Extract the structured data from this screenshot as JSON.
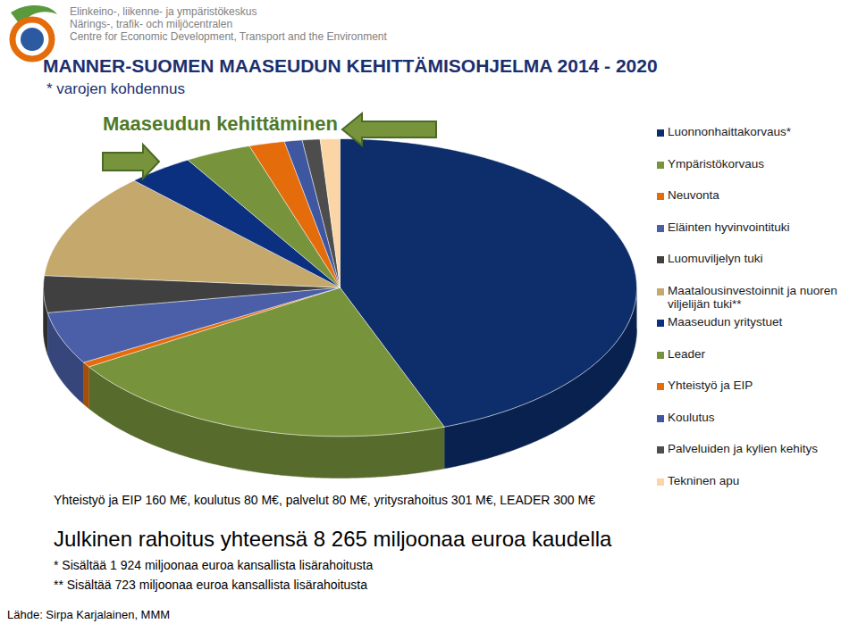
{
  "header": {
    "organization": [
      "Elinkeino-, liikenne- ja ympäristökeskus",
      "Närings-, trafik- och miljöcentralen",
      "Centre for Economic Development, Transport and the Environment"
    ]
  },
  "chart_data": {
    "type": "pie",
    "title": "MANNER-SUOMEN MAASEUDUN KEHITTÄMISOHJELMA 2014 - 2020",
    "subtitle": "* varojen kohdennus",
    "annotation": "Maaseudun kehittäminen",
    "categories": [
      "Luonnonhaittakorvaus*",
      "Ympäristökorvaus",
      "Neuvonta",
      "Eläinten hyvinvointituki",
      "Luomuviljelyn tuki",
      "Maatalousinvestoinnit ja nuoren viljelijän tuki**",
      "Maaseudun yritystuet",
      "Leader",
      "Yhteistyö ja EIP",
      "Koulutus",
      "Palveluiden ja kylien kehitys",
      "Tekninen apu"
    ],
    "values": [
      3660,
      1800,
      45,
      470,
      330,
      950,
      301,
      300,
      160,
      80,
      80,
      89
    ],
    "colors": [
      "#0d2d6b",
      "#77933c",
      "#e46c0a",
      "#4a5fa8",
      "#404040",
      "#c4a86c",
      "#0c3080",
      "#77933c",
      "#e46c0a",
      "#3f56a0",
      "#4d4d4d",
      "#fcd5a5"
    ],
    "legend": "right",
    "caption": "Yhteistyö ja EIP 160 M€, koulutus 80 M€, palvelut 80 M€, yritysrahoitus 301 M€, LEADER 300 M€",
    "total": "Julkinen rahoitus yhteensä 8 265 miljoonaa euroa kaudella",
    "footnotes": [
      "*  Sisältää 1 924 miljoonaa euroa kansallista lisärahoitusta",
      "** Sisältää 723 miljoonaa euroa kansallista lisärahoitusta"
    ],
    "source": "Lähde: Sirpa Karjalainen, MMM"
  }
}
